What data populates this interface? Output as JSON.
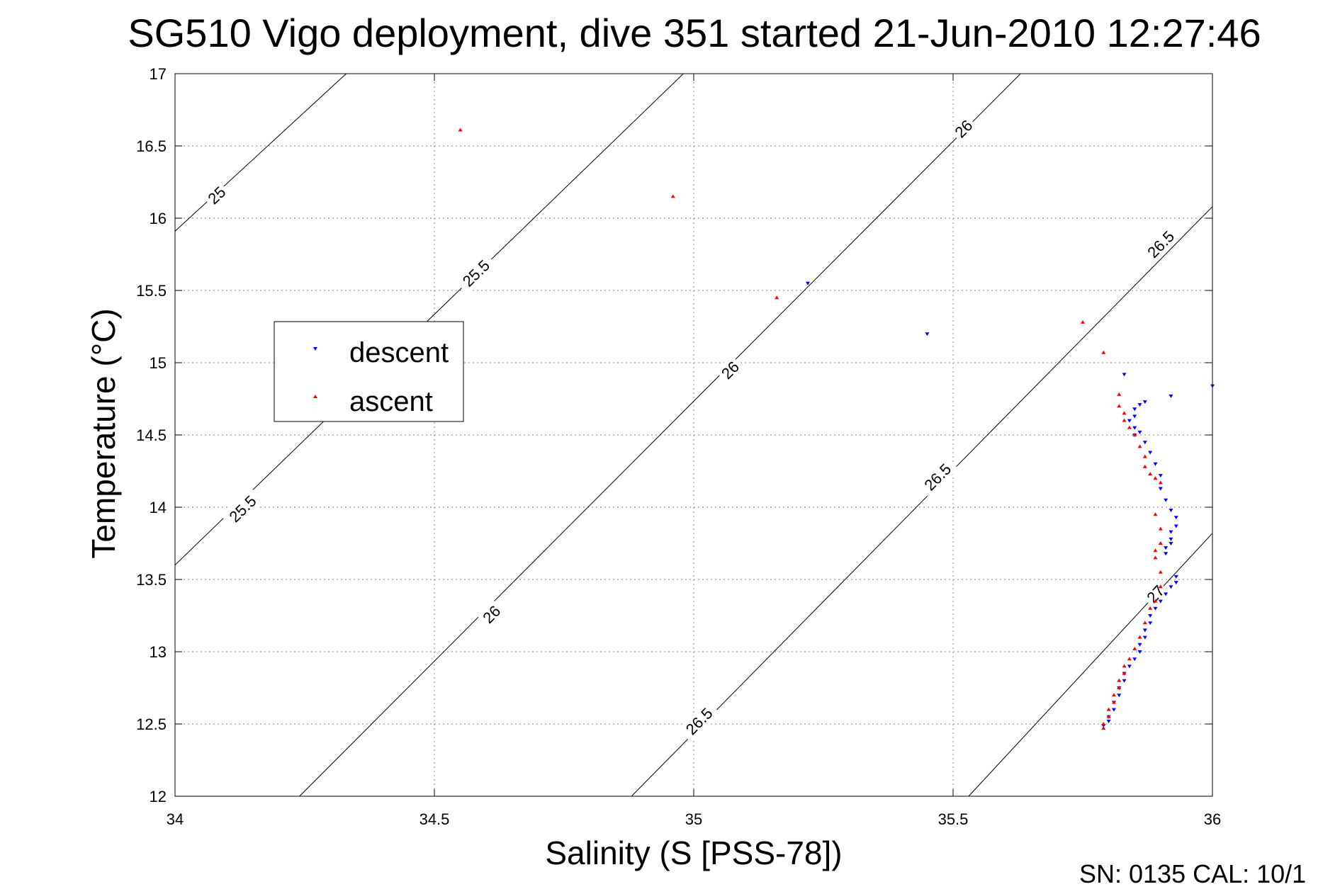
{
  "chart_data": {
    "type": "scatter",
    "title": "SG510 Vigo deployment, dive 351 started 21-Jun-2010 12:27:46",
    "xlabel": "Salinity (S [PSS-78])",
    "ylabel": "Temperature (°C)",
    "xlim": [
      34,
      36
    ],
    "ylim": [
      12,
      17
    ],
    "xticks": [
      34,
      34.5,
      35,
      35.5,
      36
    ],
    "yticks": [
      12,
      12.5,
      13,
      13.5,
      14,
      14.5,
      15,
      15.5,
      16,
      16.5,
      17
    ],
    "xtick_labels": [
      "34",
      "34.5",
      "35",
      "35.5",
      "36"
    ],
    "ytick_labels": [
      "12",
      "12.5",
      "13",
      "13.5",
      "14",
      "14.5",
      "15",
      "15.5",
      "16",
      "16.5",
      "17"
    ],
    "grid": true,
    "legend_position": "left-middle",
    "isopycnals": [
      {
        "level": 25,
        "points": [
          [
            34,
            15.91
          ],
          [
            34.33,
            17
          ]
        ],
        "labels": [
          {
            "text": "25",
            "x": 34.08,
            "y": 16.16
          }
        ]
      },
      {
        "level": 25.5,
        "points": [
          [
            34,
            13.6
          ],
          [
            34.98,
            17
          ]
        ],
        "labels": [
          {
            "text": "25.5",
            "x": 34.13,
            "y": 13.99
          },
          {
            "text": "25.5",
            "x": 34.58,
            "y": 15.62
          }
        ]
      },
      {
        "level": 26,
        "points": [
          [
            34.24,
            12
          ],
          [
            35.63,
            17
          ]
        ],
        "labels": [
          {
            "text": "26",
            "x": 34.61,
            "y": 13.26
          },
          {
            "text": "26",
            "x": 35.07,
            "y": 14.95
          },
          {
            "text": "26",
            "x": 35.52,
            "y": 16.62
          }
        ]
      },
      {
        "level": 26.5,
        "points": [
          [
            34.88,
            12
          ],
          [
            36,
            16.08
          ]
        ],
        "labels": [
          {
            "text": "26.5",
            "x": 35.01,
            "y": 12.52
          },
          {
            "text": "26.5",
            "x": 35.47,
            "y": 14.21
          },
          {
            "text": "26.5",
            "x": 35.9,
            "y": 15.82
          }
        ]
      },
      {
        "level": 27,
        "points": [
          [
            35.53,
            12
          ],
          [
            36,
            13.82
          ]
        ],
        "labels": [
          {
            "text": "27",
            "x": 35.89,
            "y": 13.4
          }
        ]
      }
    ],
    "series": [
      {
        "name": "descent",
        "color": "#0000ff",
        "marker": "triangle-down",
        "points": [
          [
            35.22,
            15.55
          ],
          [
            35.45,
            15.2
          ],
          [
            35.83,
            14.92
          ],
          [
            36.0,
            14.84
          ],
          [
            35.92,
            14.77
          ],
          [
            35.87,
            14.73
          ],
          [
            35.86,
            14.71
          ],
          [
            35.85,
            14.68
          ],
          [
            35.85,
            14.63
          ],
          [
            35.84,
            14.6
          ],
          [
            35.85,
            14.55
          ],
          [
            35.86,
            14.52
          ],
          [
            35.85,
            14.5
          ],
          [
            35.87,
            14.45
          ],
          [
            35.88,
            14.38
          ],
          [
            35.89,
            14.3
          ],
          [
            35.9,
            14.22
          ],
          [
            35.9,
            14.13
          ],
          [
            35.91,
            14.05
          ],
          [
            35.92,
            13.98
          ],
          [
            35.93,
            13.93
          ],
          [
            35.93,
            13.87
          ],
          [
            35.92,
            13.83
          ],
          [
            35.92,
            13.78
          ],
          [
            35.92,
            13.75
          ],
          [
            35.91,
            13.72
          ],
          [
            35.91,
            13.68
          ],
          [
            35.93,
            13.52
          ],
          [
            35.93,
            13.48
          ],
          [
            35.92,
            13.45
          ],
          [
            35.91,
            13.4
          ],
          [
            35.9,
            13.35
          ],
          [
            35.89,
            13.3
          ],
          [
            35.88,
            13.25
          ],
          [
            35.88,
            13.2
          ],
          [
            35.87,
            13.15
          ],
          [
            35.87,
            13.1
          ],
          [
            35.86,
            13.05
          ],
          [
            35.86,
            13.0
          ],
          [
            35.85,
            12.95
          ],
          [
            35.84,
            12.9
          ],
          [
            35.83,
            12.85
          ],
          [
            35.83,
            12.8
          ],
          [
            35.82,
            12.75
          ],
          [
            35.82,
            12.7
          ],
          [
            35.81,
            12.65
          ],
          [
            35.81,
            12.6
          ],
          [
            35.8,
            12.55
          ],
          [
            35.8,
            12.52
          ],
          [
            35.79,
            12.49
          ]
        ]
      },
      {
        "name": "ascent",
        "color": "#ff0000",
        "marker": "triangle-up",
        "points": [
          [
            34.55,
            16.61
          ],
          [
            34.96,
            16.15
          ],
          [
            35.16,
            15.45
          ],
          [
            35.75,
            15.28
          ],
          [
            35.79,
            15.07
          ],
          [
            35.82,
            14.78
          ],
          [
            35.82,
            14.7
          ],
          [
            35.83,
            14.65
          ],
          [
            35.83,
            14.6
          ],
          [
            35.84,
            14.55
          ],
          [
            35.85,
            14.5
          ],
          [
            35.86,
            14.42
          ],
          [
            35.87,
            14.35
          ],
          [
            35.87,
            14.28
          ],
          [
            35.88,
            14.23
          ],
          [
            35.89,
            14.2
          ],
          [
            35.9,
            14.17
          ],
          [
            35.89,
            13.95
          ],
          [
            35.9,
            13.85
          ],
          [
            35.9,
            13.75
          ],
          [
            35.89,
            13.7
          ],
          [
            35.89,
            13.65
          ],
          [
            35.9,
            13.55
          ],
          [
            35.9,
            13.45
          ],
          [
            35.89,
            13.35
          ],
          [
            35.88,
            13.3
          ],
          [
            35.87,
            13.2
          ],
          [
            35.86,
            13.1
          ],
          [
            35.85,
            13.02
          ],
          [
            35.84,
            12.95
          ],
          [
            35.83,
            12.9
          ],
          [
            35.83,
            12.85
          ],
          [
            35.82,
            12.8
          ],
          [
            35.82,
            12.75
          ],
          [
            35.81,
            12.7
          ],
          [
            35.81,
            12.65
          ],
          [
            35.8,
            12.6
          ],
          [
            35.8,
            12.55
          ],
          [
            35.79,
            12.5
          ],
          [
            35.79,
            12.47
          ]
        ]
      }
    ]
  },
  "footer_text": "SN: 0135  CAL: 10/1"
}
